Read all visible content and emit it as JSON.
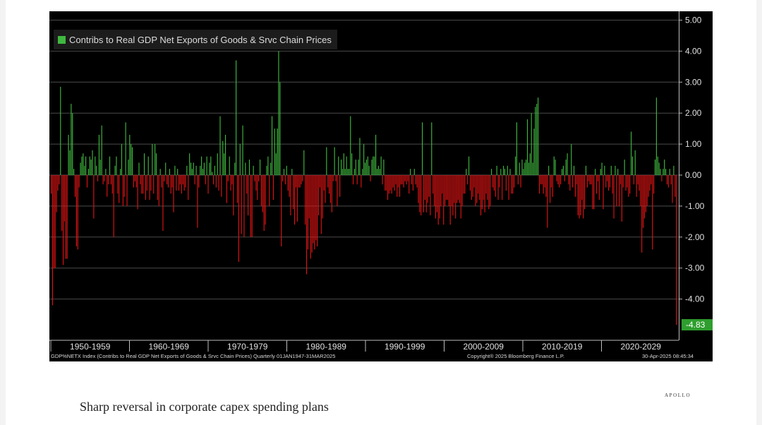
{
  "legend_label": "Contribs to Real GDP Net Exports of Goods & Srvc Chain Prices",
  "footer": {
    "index": "GDP%NETX Index (Contribs to Real GDP Net Exports of Goods & Srvc Chain Prices)  Quarterly 01JAN1947-31MAR2025",
    "copyright": "Copyright® 2025 Bloomberg Finance L.P.",
    "timestamp": "30-Apr-2025 08:45:34"
  },
  "last_value_label": "-4.83",
  "caption": "Sharp reversal in corporate capex spending plans",
  "brand": "APOLLO",
  "colors": {
    "background": "#000000",
    "positive": "#3fb83f",
    "negative": "#e01414",
    "last_label_bg": "#2e9e2e"
  },
  "chart_data": {
    "type": "bar",
    "title": "",
    "xlabel": "",
    "ylabel": "",
    "ylim": [
      -5.0,
      5.0
    ],
    "y_ticks": [
      "5.00",
      "4.00",
      "3.00",
      "2.00",
      "1.00",
      "0.00",
      "-1.00",
      "-2.00",
      "-3.00",
      "-4.00"
    ],
    "x_ticks": [
      "1950-1959",
      "1960-1969",
      "1970-1979",
      "1980-1989",
      "1990-1999",
      "2000-2009",
      "2010-2019",
      "2020-2029"
    ],
    "grid": true,
    "legend_position": "top-left",
    "x_start": "1947Q1",
    "x_end": "2025Q1",
    "frequency": "quarterly",
    "series": [
      {
        "name": "Contribs to Real GDP Net Exports of Goods & Srvc Chain Prices",
        "values": [
          -0.6,
          -4.2,
          -3.0,
          -3.0,
          -1.2,
          -0.5,
          -0.3,
          2.85,
          -1.8,
          -2.9,
          -1.5,
          -2.7,
          -2.7,
          1.3,
          0.8,
          2.3,
          2.0,
          0.2,
          -0.7,
          -2.3,
          -2.4,
          -0.4,
          0.4,
          0.6,
          0.7,
          0.3,
          0.6,
          -0.4,
          0.2,
          0.6,
          0.5,
          0.8,
          -1.4,
          0.6,
          0.3,
          -0.2,
          1.3,
          0.5,
          1.6,
          -0.3,
          -0.2,
          0.2,
          -0.7,
          -0.3,
          0.6,
          -0.3,
          -0.6,
          -2.0,
          0.3,
          0.6,
          -0.6,
          -0.9,
          0.2,
          1.0,
          -1.0,
          -0.7,
          1.7,
          -1.0,
          0.5,
          1.3,
          1.0,
          0.9,
          -0.4,
          -0.2,
          -0.4,
          -1.1,
          0.4,
          -0.3,
          -0.6,
          -0.6,
          0.7,
          -0.8,
          -0.5,
          0.6,
          -0.8,
          -0.5,
          1.0,
          -0.6,
          1.0,
          0.7,
          -0.8,
          -1.0,
          0.2,
          -0.4,
          -1.8,
          -0.2,
          0.4,
          -0.3,
          -0.4,
          0.2,
          -0.6,
          -0.4,
          -1.2,
          0.3,
          -0.5,
          0.2,
          -0.5,
          -0.3,
          -0.6,
          -0.3,
          -0.5,
          -0.4,
          0.3,
          -0.8,
          0.7,
          0.4,
          0.2,
          0.4,
          -0.3,
          0.3,
          -1.7,
          -0.4,
          0.3,
          0.6,
          0.2,
          0.4,
          -0.3,
          0.6,
          -0.6,
          0.4,
          0.6,
          0.1,
          -0.3,
          0.3,
          -0.4,
          0.7,
          -0.5,
          1.9,
          -0.7,
          1.1,
          0.7,
          1.3,
          -0.9,
          -0.2,
          0.6,
          -0.5,
          -0.3,
          -1.3,
          0.4,
          3.7,
          -0.9,
          -2.8,
          1.0,
          -1.9,
          1.6,
          -2.0,
          0.4,
          -0.6,
          -1.3,
          0.5,
          -2.0,
          -2.0,
          0.3,
          -0.2,
          -0.5,
          -0.8,
          -0.2,
          0.5,
          -1.0,
          -1.2,
          -1.8,
          -1.6,
          0.3,
          0.6,
          -1.0,
          0.4,
          1.9,
          -0.8,
          1.5,
          0.7,
          1.5,
          4.0,
          3.0,
          -2.3,
          -0.2,
          0.2,
          -0.3,
          0.3,
          -0.5,
          -0.7,
          -1.3,
          0.2,
          -1.1,
          -1.6,
          -0.4,
          -1.5,
          -0.4,
          -0.4,
          -0.3,
          -0.2,
          0.8,
          -1.6,
          -3.2,
          -2.4,
          -1.4,
          -2.7,
          -2.5,
          -2.2,
          -2.4,
          -2.1,
          -2.3,
          -1.3,
          -0.4,
          -1.9,
          -1.4,
          -0.5,
          -0.9,
          0.9,
          -0.4,
          -0.6,
          -0.9,
          -1.2,
          -0.2,
          0.9,
          -0.2,
          -1.0,
          0.6,
          -0.7,
          0.5,
          0.2,
          0.7,
          0.2,
          0.6,
          0.2,
          0.2,
          1.9,
          0.7,
          -0.3,
          0.2,
          0.5,
          -0.3,
          0.5,
          1.2,
          -0.4,
          0.2,
          1.0,
          0.4,
          0.5,
          0.6,
          0.3,
          -0.2,
          0.5,
          0.6,
          0.6,
          1.3,
          0.2,
          0.3,
          0.2,
          0.6,
          -0.3,
          0.5,
          -0.5,
          -0.5,
          -0.8,
          -0.6,
          -0.5,
          -0.6,
          -0.4,
          -0.5,
          -0.3,
          -0.7,
          -0.4,
          -0.7,
          -0.3,
          -0.3,
          -0.4,
          -0.2,
          -0.3,
          -0.2,
          -0.6,
          0.2,
          -0.3,
          -0.5,
          0.2,
          -0.3,
          -0.4,
          -0.9,
          -1.2,
          -1.3,
          1.7,
          -1.2,
          -0.8,
          -1.2,
          -0.9,
          -0.7,
          -1.3,
          1.7,
          -0.6,
          -1.0,
          -1.4,
          -1.2,
          -1.6,
          -1.4,
          -1.0,
          -0.6,
          -1.6,
          -1.0,
          -0.8,
          -0.8,
          -1.0,
          -1.6,
          -1.0,
          -1.3,
          -0.9,
          -1.4,
          -0.9,
          -0.8,
          -0.9,
          -1.4,
          -1.0,
          -0.6,
          -0.6,
          0.2,
          -0.3,
          0.6,
          -0.5,
          -0.8,
          -0.7,
          -0.4,
          -1.0,
          -0.9,
          -0.6,
          -0.8,
          -1.3,
          -1.1,
          -0.8,
          -1.2,
          -0.6,
          -0.8,
          -1.1,
          -1.0,
          0.2,
          -0.4,
          -0.5,
          -0.7,
          0.3,
          -0.8,
          -0.4,
          0.2,
          -0.8,
          0.3,
          0.2,
          -0.5,
          0.3,
          -0.8,
          0.2,
          -0.6,
          -0.6,
          -0.4,
          0.6,
          1.7,
          -0.3,
          0.4,
          -0.4,
          0.5,
          0.2,
          0.4,
          0.5,
          1.8,
          0.4,
          0.7,
          2.0,
          0.4,
          1.5,
          2.2,
          2.3,
          2.5,
          -0.6,
          -0.3,
          -0.3,
          -0.6,
          -0.4,
          -0.7,
          -1.7,
          0.3,
          -0.9,
          -0.4,
          -0.7,
          0.6,
          0.5,
          -0.2,
          -0.3,
          -0.4,
          -0.3,
          0.2,
          0.3,
          -0.2,
          0.5,
          0.7,
          -0.3,
          -0.5,
          1.0,
          -0.4,
          0.3,
          -0.7,
          -0.3,
          -1.3,
          -1.4,
          -1.3,
          -0.8,
          -1.4,
          -1.1,
          0.3,
          -0.4,
          -0.2,
          -0.3,
          -0.3,
          -1.1,
          -1.1,
          0.2,
          -0.6,
          -0.2,
          -0.8,
          0.2,
          0.4,
          -1.1,
          0.3,
          -0.4,
          -0.2,
          -0.5,
          -0.4,
          0.3,
          -0.6,
          -1.4,
          0.3,
          -1.0,
          0.2,
          -1.0,
          -0.3,
          -1.5,
          -0.4,
          0.5,
          -0.5,
          -0.4,
          -0.7,
          -0.6,
          1.4,
          0.6,
          -0.3,
          0.8,
          -0.7,
          -0.3,
          -0.5,
          -1.0,
          -2.5,
          -1.7,
          -1.4,
          -1.2,
          -1.0,
          -0.7,
          -0.5,
          -0.3,
          -2.4,
          -0.6,
          0.5,
          2.5,
          0.6,
          0.4,
          0.2,
          -0.2,
          0.2,
          0.5,
          0.2,
          -0.3,
          -0.4,
          0.2,
          -0.3,
          -0.9,
          0.3,
          -0.7,
          -4.83
        ]
      }
    ]
  }
}
